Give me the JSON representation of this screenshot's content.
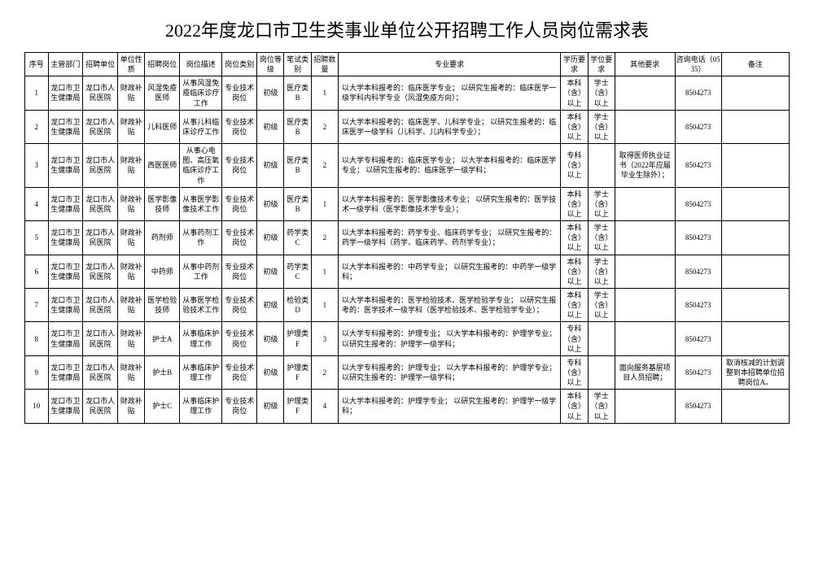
{
  "title": "2022年度龙口市卫生类事业单位公开招聘工作人员岗位需求表",
  "headers": {
    "idx": "序号",
    "dept": "主管部门",
    "unit": "招聘单位",
    "nature": "单位性质",
    "position": "招聘岗位",
    "desc": "岗位描述",
    "category": "岗位类别",
    "level": "岗位等级",
    "exam": "笔试类别",
    "num": "招聘数量",
    "req": "专业要求",
    "edu": "学历要求",
    "degree": "学位要求",
    "other": "其他要求",
    "tel": "咨询电话（0535）",
    "note": "备注"
  },
  "rows": [
    {
      "idx": "1",
      "dept": "龙口市卫生健康局",
      "unit": "龙口市人民医院",
      "nature": "财政补贴",
      "position": "风湿免疫医师",
      "desc": "从事风湿免疫临床诊疗工作",
      "category": "专业技术岗位",
      "level": "初级",
      "exam": "医疗类B",
      "num": "1",
      "req": "以大学本科报考的：临床医学专业；\n以研究生报考的：临床医学一级学科内科学专业（风湿免疫方向）；",
      "edu": "本科（含）以上",
      "degree": "学士（含）以上",
      "other": "",
      "tel": "8504273",
      "note": ""
    },
    {
      "idx": "2",
      "dept": "龙口市卫生健康局",
      "unit": "龙口市人民医院",
      "nature": "财政补贴",
      "position": "儿科医师",
      "desc": "从事儿科临床诊疗工作",
      "category": "专业技术岗位",
      "level": "初级",
      "exam": "医疗类B",
      "num": "2",
      "req": "以大学本科报考的：临床医学、儿科学专业；\n以研究生报考的：临床医学一级学科（儿科学、儿内科学专业）；",
      "edu": "本科（含）以上",
      "degree": "学士（含）以上",
      "other": "",
      "tel": "8504273",
      "note": ""
    },
    {
      "idx": "3",
      "dept": "龙口市卫生健康局",
      "unit": "龙口市人民医院",
      "nature": "财政补贴",
      "position": "西医医师",
      "desc": "从事心电图、高压氧临床诊疗工作",
      "category": "专业技术岗位",
      "level": "初级",
      "exam": "医疗类B",
      "num": "2",
      "req": "以大学专科报考的：临床医学专业；\n以大学本科报考的：临床医学专业；\n以研究生报考的：临床医学一级学科；",
      "edu": "专科（含）以上",
      "degree": "",
      "other": "取得医师执业证书（2022年应届毕业生除外）；",
      "tel": "8504273",
      "note": ""
    },
    {
      "idx": "4",
      "dept": "龙口市卫生健康局",
      "unit": "龙口市人民医院",
      "nature": "财政补贴",
      "position": "医学影像技师",
      "desc": "从事医学影像技术工作",
      "category": "专业技术岗位",
      "level": "初级",
      "exam": "医疗类B",
      "num": "1",
      "req": "以大学本科报考的：医学影像技术专业；\n以研究生报考的：医学技术一级学科（医学影像技术学专业）；",
      "edu": "本科（含）以上",
      "degree": "学士（含）以上",
      "other": "",
      "tel": "8504273",
      "note": ""
    },
    {
      "idx": "5",
      "dept": "龙口市卫生健康局",
      "unit": "龙口市人民医院",
      "nature": "财政补贴",
      "position": "药剂师",
      "desc": "从事药剂工作",
      "category": "专业技术岗位",
      "level": "初级",
      "exam": "药学类C",
      "num": "2",
      "req": "以大学本科报考的：药学专业、临床药学专业；\n以研究生报考的：药学一级学科（药学、临床药学、药剂学专业）；",
      "edu": "本科（含）以上",
      "degree": "学士（含）以上",
      "other": "",
      "tel": "8504273",
      "note": ""
    },
    {
      "idx": "6",
      "dept": "龙口市卫生健康局",
      "unit": "龙口市人民医院",
      "nature": "财政补贴",
      "position": "中药师",
      "desc": "从事中药剂工作",
      "category": "专业技术岗位",
      "level": "初级",
      "exam": "药学类C",
      "num": "1",
      "req": "以大学本科报考的：中药学专业；\n以研究生报考的：中药学一级学科；",
      "edu": "本科（含）以上",
      "degree": "学士（含）以上",
      "other": "",
      "tel": "8504273",
      "note": ""
    },
    {
      "idx": "7",
      "dept": "龙口市卫生健康局",
      "unit": "龙口市人民医院",
      "nature": "财政补贴",
      "position": "医学检验技师",
      "desc": "从事医学检验技术工作",
      "category": "专业技术岗位",
      "level": "初级",
      "exam": "检验类D",
      "num": "1",
      "req": "以大学本科报考的：医学检验技术、医学检验学专业；\n以研究生报考的：医学技术一级学科（医学检验技术、医学检验学专业）；",
      "edu": "本科（含）以上",
      "degree": "学士（含）以上",
      "other": "",
      "tel": "8504273",
      "note": ""
    },
    {
      "idx": "8",
      "dept": "龙口市卫生健康局",
      "unit": "龙口市人民医院",
      "nature": "财政补贴",
      "position": "护士A",
      "desc": "从事临床护理工作",
      "category": "专业技术岗位",
      "level": "初级",
      "exam": "护理类F",
      "num": "3",
      "req": "以大学专科报考的：护理专业；\n以大学本科报考的：护理学专业；\n以研究生报考的：护理学一级学科；",
      "edu": "专科（含）以上",
      "degree": "",
      "other": "",
      "tel": "8504273",
      "note": ""
    },
    {
      "idx": "9",
      "dept": "龙口市卫生健康局",
      "unit": "龙口市人民医院",
      "nature": "财政补贴",
      "position": "护士B",
      "desc": "从事临床护理工作",
      "category": "专业技术岗位",
      "level": "初级",
      "exam": "护理类F",
      "num": "2",
      "req": "以大学专科报考的：护理专业；\n以大学本科报考的：护理学专业；\n以研究生报考的：护理学一级学科；",
      "edu": "专科（含）以上",
      "degree": "",
      "other": "面向服务基层项目人员招聘；",
      "tel": "8504273",
      "note": "取消核减的计划调整到本招聘单位招聘岗位A。"
    },
    {
      "idx": "10",
      "dept": "龙口市卫生健康局",
      "unit": "龙口市人民医院",
      "nature": "财政补贴",
      "position": "护士C",
      "desc": "从事临床护理工作",
      "category": "专业技术岗位",
      "level": "初级",
      "exam": "护理类F",
      "num": "4",
      "req": "以大学本科报考的：护理学专业；\n以研究生报考的：护理学一级学科；",
      "edu": "本科（含）以上",
      "degree": "学士（含）以上",
      "other": "",
      "tel": "8504273",
      "note": ""
    }
  ]
}
